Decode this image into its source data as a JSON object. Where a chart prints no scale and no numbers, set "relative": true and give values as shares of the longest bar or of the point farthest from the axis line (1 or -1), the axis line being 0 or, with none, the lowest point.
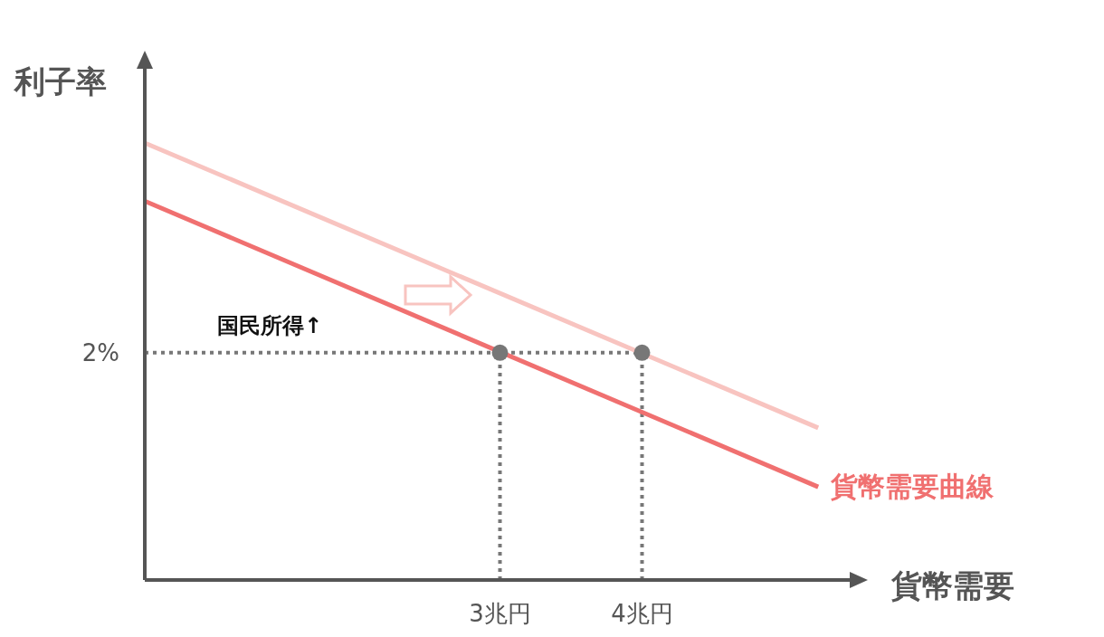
{
  "chart_data": {
    "type": "line",
    "relative": true,
    "xlabel": "貨幣需要",
    "ylabel": "利子率",
    "xlim": [
      0.5,
      5.5
    ],
    "xticks": [
      {
        "value": 3,
        "label": "3兆円"
      },
      {
        "value": 4,
        "label": "4兆円"
      }
    ],
    "series": [
      {
        "color": "#f8c4c0",
        "x": [
          0.5,
          5.24
        ],
        "values": [
          1,
          0.348
        ]
      },
      {
        "name": "貨幣需要曲線",
        "color": "#f07070",
        "x": [
          0.5,
          5.24
        ],
        "values": [
          0.867,
          0.213
        ]
      },
      {
        "type": "scatter",
        "color": "#777777",
        "marker": "circle",
        "x": [
          3,
          4
        ],
        "values": [
          0.52,
          0.52
        ]
      }
    ],
    "ref_lines": [
      {
        "axis": "y",
        "value": 0.52,
        "color": "#777777",
        "line_style": "dotted"
      },
      {
        "axis": "x",
        "value": 3,
        "color": "#777777",
        "line_style": "dotted"
      },
      {
        "axis": "x",
        "value": 4,
        "color": "#777777",
        "line_style": "dotted"
      }
    ],
    "annotations": [
      "国民所得↑",
      "2%"
    ]
  }
}
